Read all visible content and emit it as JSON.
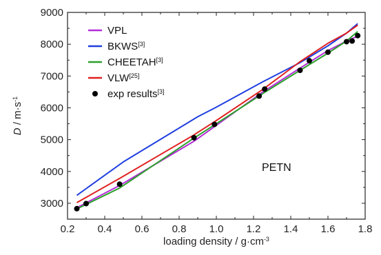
{
  "chart_data": {
    "type": "line",
    "title": "",
    "xlabel": "loading density / g·cm",
    "xlabel_sup": "-3",
    "ylabel_var": "D",
    "ylabel_unit": " / m·s",
    "ylabel_sup": "-1",
    "xlim": [
      0.2,
      1.8
    ],
    "ylim": [
      2500,
      9000
    ],
    "xticks": [
      "0.2",
      "0.4",
      "0.6",
      "0.8",
      "1.0",
      "1.2",
      "1.4",
      "1.6",
      "1.8"
    ],
    "yticks": [
      "3000",
      "4000",
      "5000",
      "6000",
      "7000",
      "8000",
      "9000"
    ],
    "grid": false,
    "legend_position": "top-left",
    "annotation": "PETN",
    "series": [
      {
        "name": "VPL",
        "sup": "",
        "color": "#b22cd8",
        "x": [
          0.25,
          0.48,
          0.88,
          1.0,
          1.25,
          1.45,
          1.6,
          1.7,
          1.76
        ],
        "y": [
          2860,
          3560,
          4950,
          5450,
          6500,
          7250,
          7800,
          8100,
          8250
        ]
      },
      {
        "name": "BKWS",
        "sup": "[3]",
        "color": "#1f3fe0",
        "x": [
          0.25,
          0.5,
          0.9,
          1.0,
          1.25,
          1.45,
          1.6,
          1.7,
          1.76
        ],
        "y": [
          3250,
          4300,
          5720,
          6020,
          6820,
          7420,
          7950,
          8350,
          8650
        ]
      },
      {
        "name": "CHEETAH",
        "sup": "[3]",
        "color": "#2ca02c",
        "x": [
          0.25,
          0.48,
          0.88,
          1.0,
          1.25,
          1.45,
          1.6,
          1.7,
          1.76
        ],
        "y": [
          2820,
          3480,
          5050,
          5500,
          6450,
          7180,
          7720,
          8100,
          8400
        ]
      },
      {
        "name": "VLW",
        "sup": "[25]",
        "color": "#e02020",
        "x": [
          0.25,
          0.48,
          0.88,
          1.0,
          1.25,
          1.45,
          1.6,
          1.7,
          1.76
        ],
        "y": [
          3020,
          3780,
          5150,
          5600,
          6580,
          7450,
          8030,
          8350,
          8600
        ]
      }
    ],
    "scatter": {
      "name": "exp results",
      "sup": "[3]",
      "color": "#000000",
      "x": [
        0.25,
        0.3,
        0.48,
        0.88,
        0.99,
        1.23,
        1.26,
        1.45,
        1.5,
        1.6,
        1.7,
        1.73,
        1.76
      ],
      "y": [
        2830,
        2990,
        3600,
        5060,
        5480,
        6370,
        6590,
        7180,
        7480,
        7750,
        8080,
        8100,
        8270
      ]
    }
  }
}
